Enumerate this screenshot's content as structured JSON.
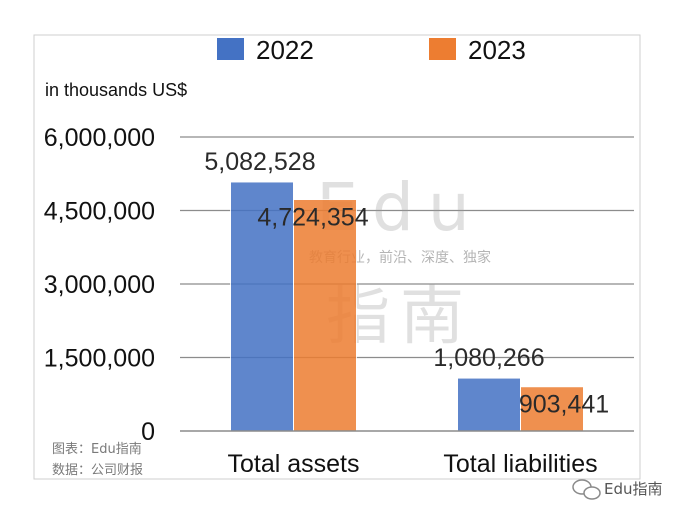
{
  "chart_data": {
    "type": "bar",
    "unit_label": "in thousands US$",
    "categories": [
      "Total assets",
      "Total liabilities"
    ],
    "series": [
      {
        "name": "2022",
        "values": [
          5082528,
          1080266
        ],
        "labels": [
          "5,082,528",
          "1,080,266"
        ]
      },
      {
        "name": "2023",
        "values": [
          4724354,
          903441
        ],
        "labels": [
          "4,724,354",
          "903,441"
        ]
      }
    ],
    "y_ticks": [
      0,
      1500000,
      3000000,
      4500000,
      6000000
    ],
    "y_tick_labels": [
      "0",
      "1,500,000",
      "3,000,000",
      "4,500,000",
      "6,000,000"
    ],
    "ylim": [
      0,
      6000000
    ],
    "grid": true,
    "legend_position": "top"
  },
  "colors": {
    "series_2022": "#4472C4",
    "series_2023": "#ED7D31",
    "grid": "#8c8c8c"
  },
  "credits": {
    "chart_credit": "图表：Edu指南",
    "data_credit": "数据：公司财报"
  },
  "watermark": {
    "line1": "Edu",
    "line2": "指南",
    "tagline": "教育行业，前沿、深度、独家"
  },
  "branding": {
    "wechat_icon": "wechat-icon",
    "wechat_label": "Edu指南"
  }
}
